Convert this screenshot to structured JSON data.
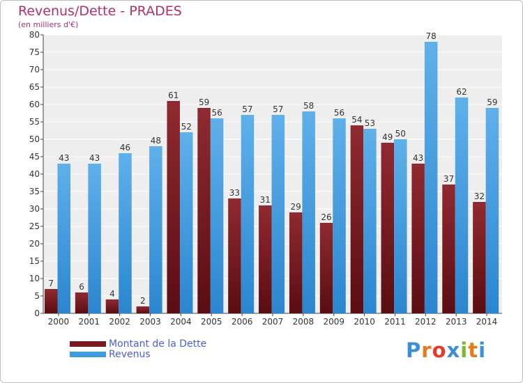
{
  "header": {
    "title": "Revenus/Dette - PRADES",
    "subtitle": "(en milliers d'€)"
  },
  "logo": {
    "text": "Proxiti",
    "letter_colors": [
      "#3b8fd6",
      "#e87a1a",
      "#e33b2c",
      "#3b8fd6",
      "#7ab82e",
      "#e87a1a",
      "#3b8fd6"
    ]
  },
  "colors": {
    "dette": "#7a1a20",
    "revenus": "#3d9be0",
    "title": "#b0306a",
    "legend_text": "#4a5fdd"
  },
  "chart_data": {
    "type": "bar",
    "title": "Revenus/Dette - PRADES",
    "subtitle": "(en milliers d'€)",
    "xlabel": "",
    "ylabel": "",
    "categories": [
      "2000",
      "2001",
      "2002",
      "2003",
      "2004",
      "2005",
      "2006",
      "2007",
      "2008",
      "2009",
      "2010",
      "2011",
      "2012",
      "2013",
      "2014"
    ],
    "series": [
      {
        "name": "Montant de la Dette",
        "values": [
          7,
          6,
          4,
          2,
          61,
          59,
          33,
          31,
          29,
          26,
          54,
          49,
          43,
          37,
          32
        ]
      },
      {
        "name": "Revenus",
        "values": [
          43,
          43,
          46,
          48,
          52,
          56,
          57,
          57,
          58,
          56,
          53,
          50,
          78,
          62,
          59
        ]
      }
    ],
    "ylim": [
      0,
      80
    ],
    "yticks": [
      0,
      5,
      10,
      15,
      20,
      25,
      30,
      35,
      40,
      45,
      50,
      55,
      60,
      65,
      70,
      75,
      80
    ],
    "grid": true,
    "legend": "bottom-left"
  }
}
